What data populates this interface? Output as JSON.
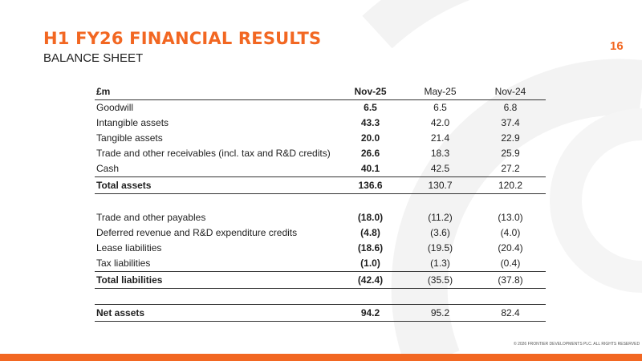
{
  "colors": {
    "accent": "#f26722",
    "swirl": "#f2f2f2"
  },
  "slide": {
    "title": "H1 FY26 FINANCIAL RESULTS",
    "subtitle": "BALANCE SHEET",
    "page_number": "16",
    "footer": "© 2026 FRONTIER DEVELOPMENTS PLC. ALL RIGHTS RESERVED"
  },
  "table": {
    "header": [
      "£m",
      "Nov-25",
      "May-25",
      "Nov-24"
    ],
    "assets": [
      {
        "label": "Goodwill",
        "nov25": "6.5",
        "may25": "6.5",
        "nov24": "6.8"
      },
      {
        "label": "Intangible assets",
        "nov25": "43.3",
        "may25": "42.0",
        "nov24": "37.4"
      },
      {
        "label": "Tangible assets",
        "nov25": "20.0",
        "may25": "21.4",
        "nov24": "22.9"
      },
      {
        "label": "Trade and other receivables (incl. tax and R&D credits)",
        "nov25": "26.6",
        "may25": "18.3",
        "nov24": "25.9"
      },
      {
        "label": "Cash",
        "nov25": "40.1",
        "may25": "42.5",
        "nov24": "27.2"
      }
    ],
    "total_assets": {
      "label": "Total assets",
      "nov25": "136.6",
      "may25": "130.7",
      "nov24": "120.2"
    },
    "liabilities": [
      {
        "label": "Trade and other payables",
        "nov25": "(18.0)",
        "may25": "(11.2)",
        "nov24": "(13.0)"
      },
      {
        "label": "Deferred revenue and R&D expenditure credits",
        "nov25": "(4.8)",
        "may25": "(3.6)",
        "nov24": "(4.0)"
      },
      {
        "label": "Lease liabilities",
        "nov25": "(18.6)",
        "may25": "(19.5)",
        "nov24": "(20.4)"
      },
      {
        "label": "Tax liabilities",
        "nov25": "(1.0)",
        "may25": "(1.3)",
        "nov24": "(0.4)"
      }
    ],
    "total_liabilities": {
      "label": "Total liabilities",
      "nov25": "(42.4)",
      "may25": "(35.5)",
      "nov24": "(37.8)"
    },
    "net_assets": {
      "label": "Net assets",
      "nov25": "94.2",
      "may25": "95.2",
      "nov24": "82.4"
    }
  }
}
